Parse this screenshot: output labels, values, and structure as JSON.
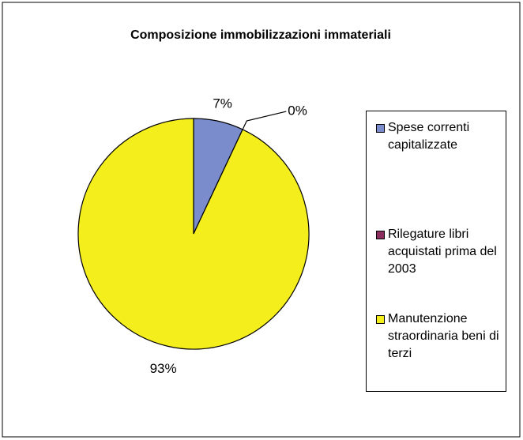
{
  "chart_data": {
    "type": "pie",
    "title": "Composizione immobilizzazioni immateriali",
    "categories": [
      "Spese correnti capitalizzate",
      "Rilegature libri acquistati prima del 2003",
      "Manutenzione straordinaria beni di terzi"
    ],
    "values": [
      7,
      0,
      93
    ],
    "value_labels": [
      "7%",
      "0%",
      "93%"
    ],
    "colors": [
      "#7b8ccc",
      "#8b2d5f",
      "#f4ee1c"
    ],
    "legend": "right"
  }
}
